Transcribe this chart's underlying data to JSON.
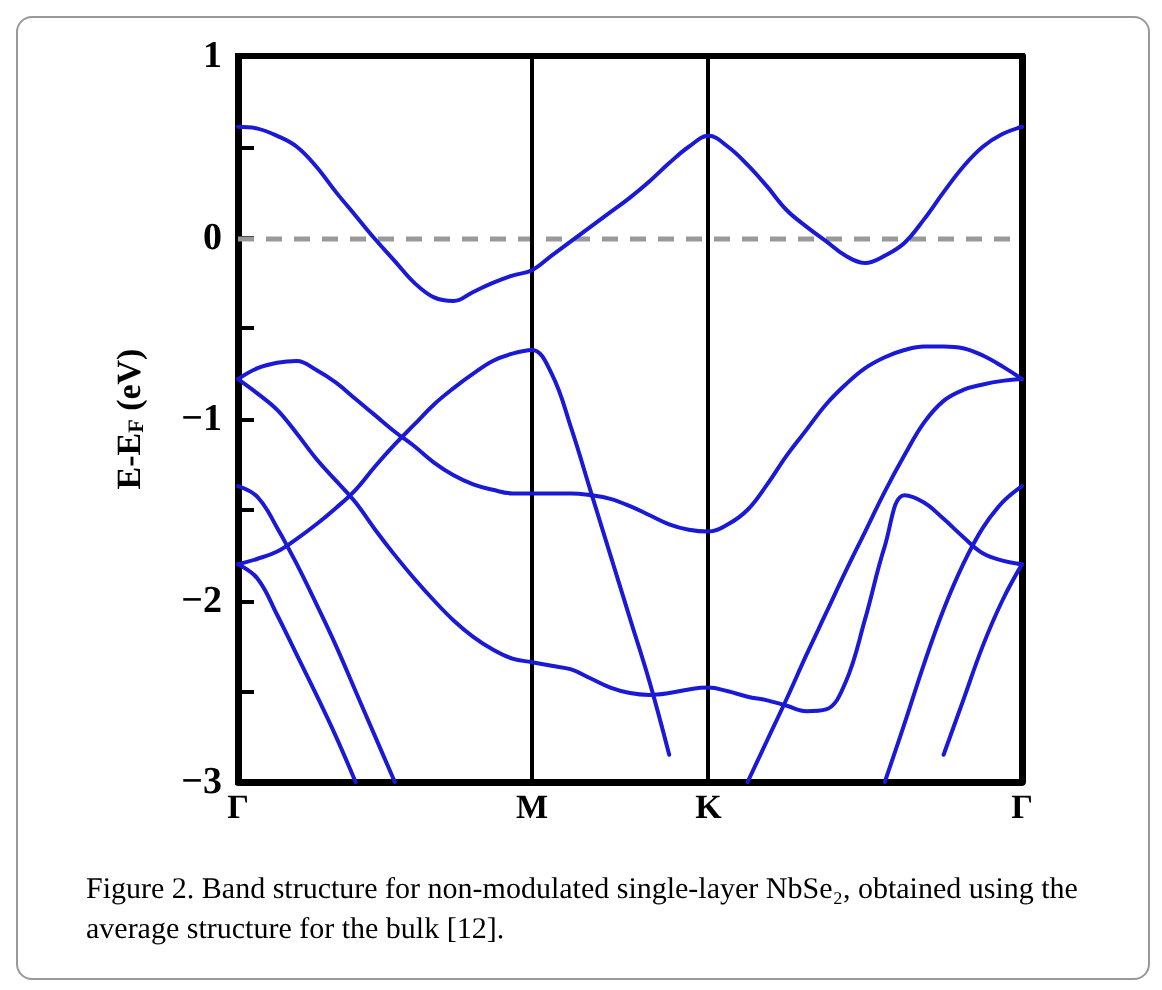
{
  "chart_data": {
    "type": "line",
    "ylabel": "E-E$_{F}$ (eV)",
    "annotations": [
      "Figure 2. Band structure for non-modulated single-layer NbSe₂, obtained using the average structure for the bulk [12]."
    ],
    "categories": [
      "Γ",
      null,
      null,
      null,
      null,
      null,
      null,
      null,
      null,
      null,
      null,
      null,
      null,
      null,
      null,
      "M",
      null,
      null,
      null,
      null,
      null,
      null,
      null,
      null,
      "K",
      null,
      null,
      null,
      null,
      null,
      null,
      null,
      null,
      null,
      null,
      null,
      null,
      null,
      null,
      null,
      "Γ"
    ],
    "ylim": [
      -3,
      1
    ],
    "yticks": [
      -3,
      {
        "value": -2.5,
        "label": null
      },
      -2,
      {
        "value": -1.5,
        "label": null
      },
      -1,
      {
        "value": -0.5,
        "label": null
      },
      0,
      {
        "value": 0.5,
        "label": null
      },
      1
    ],
    "grid": false,
    "marker": "none",
    "line_style": "solid",
    "ref_lines": [
      {
        "axis": "y",
        "value": 0,
        "label": null,
        "color": "#999999",
        "line_style": "dashed"
      },
      {
        "axis": "x",
        "value": "M",
        "label": null,
        "color": "#000000",
        "line_style": "solid"
      },
      {
        "axis": "x",
        "value": "K",
        "label": null,
        "color": "#000000",
        "line_style": "solid"
      }
    ],
    "series": [
      {
        "color": "#1a1ad6",
        "values": [
          0.61,
          0.6,
          0.56,
          0.5,
          0.39,
          0.25,
          0.12,
          -0.01,
          -0.13,
          -0.25,
          -0.33,
          -0.35,
          -0.3,
          -0.25,
          -0.21,
          -0.18,
          -0.1,
          -0.02,
          0.06,
          0.14,
          0.22,
          0.31,
          0.41,
          0.5,
          0.56,
          0.5,
          0.4,
          0.28,
          0.15,
          0.06,
          -0.02,
          -0.1,
          -0.14,
          -0.1,
          -0.03,
          0.1,
          0.25,
          0.39,
          0.5,
          0.57,
          0.61
        ]
      },
      {
        "color": "#1a1ad6",
        "values": [
          -0.78,
          -0.72,
          -0.69,
          -0.68,
          -0.73,
          -0.8,
          -0.89,
          -0.98,
          -1.07,
          -1.15,
          -1.24,
          -1.31,
          -1.36,
          -1.39,
          -1.41,
          -1.41,
          -1.41,
          -1.41,
          -1.42,
          -1.44,
          -1.48,
          -1.53,
          -1.58,
          -1.61,
          -1.62,
          -1.58,
          -1.5,
          -1.36,
          -1.2,
          -1.06,
          -0.92,
          -0.81,
          -0.72,
          -0.66,
          -0.62,
          -0.6,
          -0.6,
          -0.61,
          -0.65,
          -0.71,
          -0.78
        ]
      },
      {
        "color": "#1a1ad6",
        "values": [
          -0.78,
          -0.86,
          -0.95,
          -1.08,
          -1.22,
          -1.34,
          -1.46,
          -1.61,
          -1.75,
          -1.88,
          -2.0,
          -2.11,
          -2.2,
          -2.27,
          -2.32,
          -2.34,
          -2.36,
          -2.38,
          -2.43,
          -2.48,
          -2.51,
          -2.52,
          -2.51,
          -2.49,
          -2.48,
          -2.5,
          -2.53,
          -2.55,
          -2.58,
          -2.61,
          -2.6,
          -2.45,
          -2.1,
          -1.7,
          -1.42,
          -1.46,
          -1.55,
          -1.65,
          -1.74,
          -1.78,
          -1.8
        ]
      },
      {
        "color": "#1a1ad6",
        "values": [
          -1.8,
          -1.77,
          -1.73,
          -1.66,
          -1.58,
          -1.49,
          -1.39,
          -1.26,
          -1.14,
          -1.03,
          -0.92,
          -0.83,
          -0.75,
          -0.68,
          -0.64,
          -0.62,
          -0.75,
          -1.05,
          -1.4,
          -1.75,
          -2.1,
          -2.45,
          -2.85,
          null,
          null,
          null,
          null,
          null,
          null,
          null,
          null,
          null,
          null,
          null,
          null,
          null,
          null,
          null,
          null,
          null,
          null
        ]
      },
      {
        "color": "#1a1ad6",
        "values": [
          null,
          null,
          null,
          null,
          null,
          null,
          null,
          null,
          null,
          null,
          null,
          null,
          null,
          null,
          null,
          null,
          null,
          null,
          null,
          null,
          null,
          null,
          null,
          null,
          null,
          null,
          -3.0,
          -2.77,
          -2.54,
          -2.3,
          -2.07,
          -1.84,
          -1.62,
          -1.4,
          -1.2,
          -1.02,
          -0.9,
          -0.84,
          -0.81,
          -0.79,
          -0.78
        ]
      },
      {
        "color": "#1a1ad6",
        "values": [
          -1.37,
          -1.43,
          -1.6,
          -1.8,
          -2.02,
          -2.25,
          -2.5,
          -2.75,
          -3.0,
          null,
          null,
          null,
          null,
          null,
          null,
          null,
          null,
          null,
          null,
          null,
          null,
          null,
          null,
          null,
          null,
          null,
          null,
          null,
          null,
          null,
          null,
          null,
          null,
          null,
          null,
          null,
          null,
          null,
          null,
          null,
          null
        ]
      },
      {
        "color": "#1a1ad6",
        "values": [
          -1.8,
          -1.88,
          -2.08,
          -2.3,
          -2.52,
          -2.75,
          -3.0,
          null,
          null,
          null,
          null,
          null,
          null,
          null,
          null,
          null,
          null,
          null,
          null,
          null,
          null,
          null,
          null,
          null,
          null,
          null,
          null,
          null,
          null,
          null,
          null,
          null,
          null,
          null,
          null,
          null,
          null,
          null,
          null,
          null,
          null
        ]
      },
      {
        "color": "#1a1ad6",
        "values": [
          null,
          null,
          null,
          null,
          null,
          null,
          null,
          null,
          null,
          null,
          null,
          null,
          null,
          null,
          null,
          null,
          null,
          null,
          null,
          null,
          null,
          null,
          null,
          null,
          null,
          null,
          null,
          null,
          null,
          null,
          null,
          null,
          null,
          -3.0,
          -2.68,
          -2.35,
          -2.05,
          -1.8,
          -1.6,
          -1.46,
          -1.37
        ]
      },
      {
        "color": "#1a1ad6",
        "values": [
          null,
          null,
          null,
          null,
          null,
          null,
          null,
          null,
          null,
          null,
          null,
          null,
          null,
          null,
          null,
          null,
          null,
          null,
          null,
          null,
          null,
          null,
          null,
          null,
          null,
          null,
          null,
          null,
          null,
          null,
          null,
          null,
          null,
          null,
          null,
          null,
          -2.85,
          -2.55,
          -2.25,
          -2.0,
          -1.8
        ]
      }
    ]
  }
}
